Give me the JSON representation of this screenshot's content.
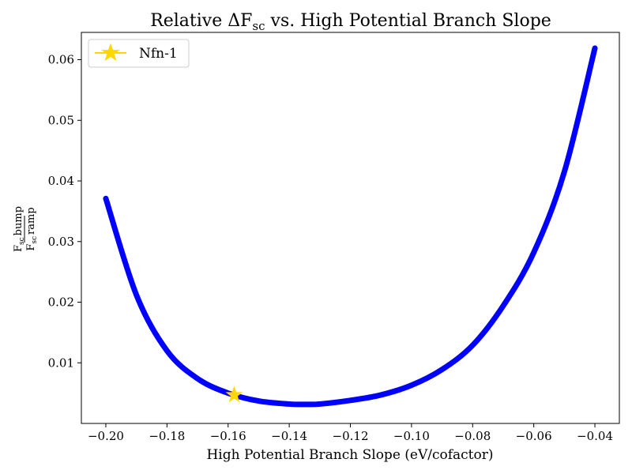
{
  "chart_data": {
    "type": "line",
    "title": {
      "prefix": "Relative ΔF",
      "subscript": "sc",
      "suffix": " vs. High Potential Branch Slope"
    },
    "xlabel": "High Potential Branch Slope (eV/cofactor)",
    "ylabel": {
      "numerator": {
        "base": "F",
        "subscript": "sc",
        "text": "bump"
      },
      "denominator": {
        "base": "F",
        "subscript": "sc",
        "text": "ramp"
      }
    },
    "xlim": [
      -0.208,
      -0.032
    ],
    "ylim": [
      0.0,
      0.0645
    ],
    "xticks": [
      -0.2,
      -0.18,
      -0.16,
      -0.14,
      -0.12,
      -0.1,
      -0.08,
      -0.06,
      -0.04
    ],
    "xtick_labels": [
      "−0.20",
      "−0.18",
      "−0.16",
      "−0.14",
      "−0.12",
      "−0.10",
      "−0.08",
      "−0.06",
      "−0.04"
    ],
    "yticks": [
      0.01,
      0.02,
      0.03,
      0.04,
      0.05,
      0.06
    ],
    "ytick_labels": [
      "0.01",
      "0.02",
      "0.03",
      "0.04",
      "0.05",
      "0.06"
    ],
    "grid": false,
    "legend_position": "top-left",
    "series": [
      {
        "color": "#0000ff",
        "x": [
          -0.2,
          -0.19,
          -0.18,
          -0.17,
          -0.16,
          -0.15,
          -0.14,
          -0.135,
          -0.13,
          -0.12,
          -0.11,
          -0.1,
          -0.09,
          -0.08,
          -0.07,
          -0.06,
          -0.05,
          -0.04
        ],
        "y": [
          0.0371,
          0.0212,
          0.012,
          0.0074,
          0.005,
          0.0037,
          0.0032,
          0.00315,
          0.0032,
          0.0038,
          0.0047,
          0.0063,
          0.0089,
          0.0129,
          0.0194,
          0.0282,
          0.0415,
          0.0619
        ]
      },
      {
        "name": "Nfn-1",
        "marker": "star",
        "color": "#ffd700",
        "x": [
          -0.158
        ],
        "y": [
          0.0047
        ]
      }
    ]
  }
}
